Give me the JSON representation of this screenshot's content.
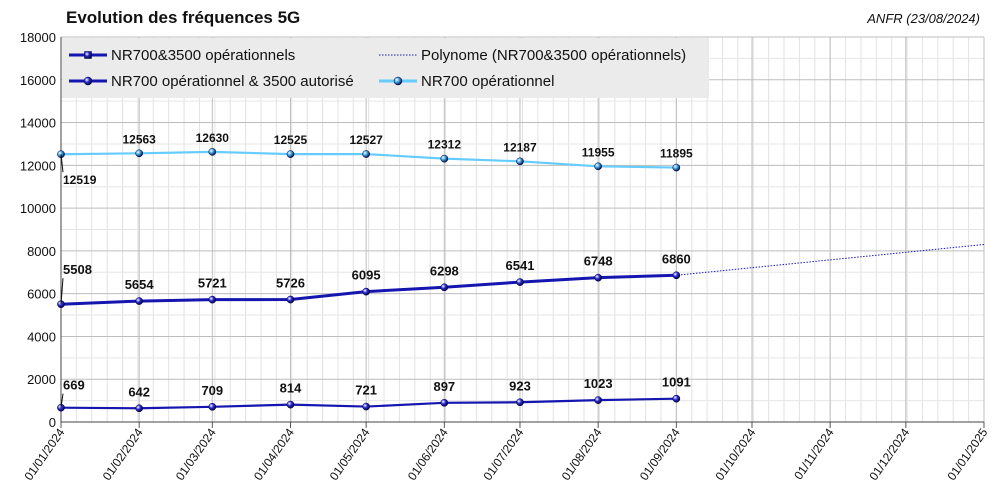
{
  "chart_data": {
    "type": "line",
    "title": "Evolution des fréquences 5G",
    "source": "ANFR (23/08/2024)",
    "x_ticks": [
      "01/01/2024",
      "01/02/2024",
      "01/03/2024",
      "01/04/2024",
      "01/05/2024",
      "01/06/2024",
      "01/07/2024",
      "01/08/2024",
      "01/09/2024",
      "01/10/2024",
      "01/11/2024",
      "01/12/2024",
      "01/01/2025"
    ],
    "y_ticks": [
      "0",
      "2000",
      "4000",
      "6000",
      "8000",
      "10000",
      "12000",
      "14000",
      "16000",
      "18000"
    ],
    "ylim": [
      0,
      18000
    ],
    "xlim": [
      "01/01/2024",
      "01/01/2025"
    ],
    "grid": true,
    "legend_position": "top",
    "x": [
      "01/01/2024",
      "01/02/2024",
      "01/03/2024",
      "01/04/2024",
      "01/05/2024",
      "01/06/2024",
      "01/07/2024",
      "01/08/2024",
      "01/09/2024"
    ],
    "series": [
      {
        "name": "NR700 opérationnel",
        "color": "#66ccff",
        "values": [
          12519,
          12563,
          12630,
          12525,
          12527,
          12312,
          12187,
          11955,
          11895
        ],
        "labels": [
          "12519",
          "12563",
          "12630",
          "12525",
          "12527",
          "12312",
          "12187",
          "11955",
          "11895"
        ]
      },
      {
        "name": "NR700&3500 opérationnels",
        "color": "#1515b0",
        "values": [
          5508,
          5654,
          5721,
          5726,
          6095,
          6298,
          6541,
          6748,
          6860
        ],
        "labels": [
          "5508",
          "5654",
          "5721",
          "5726",
          "6095",
          "6298",
          "6541",
          "6748",
          "6860"
        ]
      },
      {
        "name": "NR700 opérationnel & 3500 autorisé",
        "color": "#1515b0",
        "values": [
          669,
          642,
          709,
          814,
          721,
          897,
          923,
          1023,
          1091
        ],
        "labels": [
          "669",
          "642",
          "709",
          "814",
          "721",
          "897",
          "923",
          "1023",
          "1091"
        ]
      }
    ],
    "trendline": {
      "name": "Polynome (NR700&3500 opérationnels)",
      "color": "#1a1ab8",
      "x_end": "01/01/2025",
      "y_end": 8300
    },
    "legend": [
      {
        "label": "NR700&3500 opérationnels",
        "style": "square-line",
        "color": "#1515b0"
      },
      {
        "label": "Polynome (NR700&3500 opérationnels)",
        "style": "dotted",
        "color": "#1a1ab8"
      },
      {
        "label": "NR700 opérationnel & 3500 autorisé",
        "style": "ball-line",
        "color": "#1515b0"
      },
      {
        "label": "NR700 opérationnel",
        "style": "ball-line",
        "color": "#66ccff"
      }
    ]
  }
}
